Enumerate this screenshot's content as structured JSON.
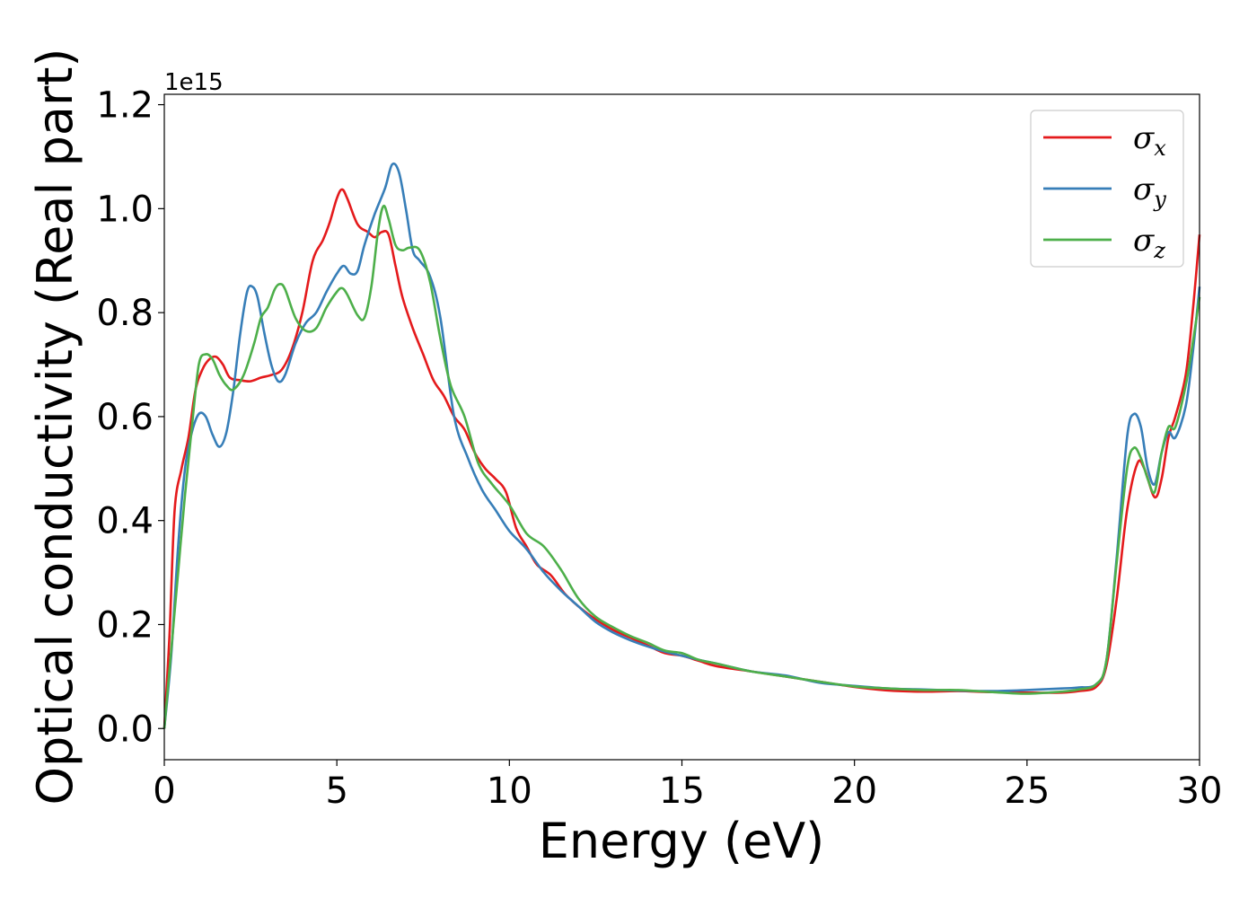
{
  "chart_data": {
    "type": "line",
    "title": "",
    "xlabel": "Energy (eV)",
    "ylabel": "Optical conductivity (Real part)",
    "y_offset_label": "1e15",
    "y_scale": 1000000000000000.0,
    "xlim": [
      0,
      30
    ],
    "ylim": [
      -0.06,
      1.22
    ],
    "x_ticks": [
      0,
      5,
      10,
      15,
      20,
      25,
      30
    ],
    "x_tick_labels": [
      "0",
      "5",
      "10",
      "15",
      "20",
      "25",
      "30"
    ],
    "y_ticks": [
      0.0,
      0.2,
      0.4,
      0.6,
      0.8,
      1.0,
      1.2
    ],
    "y_tick_labels": [
      "0.0",
      "0.2",
      "0.4",
      "0.6",
      "0.8",
      "1.0",
      "1.2"
    ],
    "grid": false,
    "legend_position": "top-right",
    "series": [
      {
        "name": "σx",
        "symbol": "σ",
        "subscript": "x",
        "color": "#e41a1c",
        "points": [
          [
            0,
            0.0
          ],
          [
            0.15,
            0.18
          ],
          [
            0.3,
            0.42
          ],
          [
            0.5,
            0.5
          ],
          [
            0.7,
            0.56
          ],
          [
            0.9,
            0.65
          ],
          [
            1.1,
            0.69
          ],
          [
            1.3,
            0.71
          ],
          [
            1.5,
            0.715
          ],
          [
            1.7,
            0.7
          ],
          [
            1.9,
            0.675
          ],
          [
            2.2,
            0.67
          ],
          [
            2.5,
            0.668
          ],
          [
            2.8,
            0.675
          ],
          [
            3.1,
            0.68
          ],
          [
            3.4,
            0.69
          ],
          [
            3.7,
            0.73
          ],
          [
            4.0,
            0.8
          ],
          [
            4.3,
            0.9
          ],
          [
            4.6,
            0.94
          ],
          [
            4.8,
            0.975
          ],
          [
            5.0,
            1.02
          ],
          [
            5.15,
            1.037
          ],
          [
            5.3,
            1.02
          ],
          [
            5.6,
            0.97
          ],
          [
            5.9,
            0.955
          ],
          [
            6.1,
            0.945
          ],
          [
            6.3,
            0.955
          ],
          [
            6.5,
            0.95
          ],
          [
            6.7,
            0.89
          ],
          [
            6.9,
            0.83
          ],
          [
            7.2,
            0.77
          ],
          [
            7.5,
            0.72
          ],
          [
            7.8,
            0.67
          ],
          [
            8.1,
            0.64
          ],
          [
            8.4,
            0.6
          ],
          [
            8.7,
            0.575
          ],
          [
            9.0,
            0.53
          ],
          [
            9.3,
            0.5
          ],
          [
            9.6,
            0.48
          ],
          [
            9.9,
            0.455
          ],
          [
            10.2,
            0.385
          ],
          [
            10.5,
            0.35
          ],
          [
            10.8,
            0.315
          ],
          [
            11.2,
            0.295
          ],
          [
            11.6,
            0.26
          ],
          [
            12.0,
            0.235
          ],
          [
            12.5,
            0.21
          ],
          [
            13.0,
            0.19
          ],
          [
            13.5,
            0.175
          ],
          [
            14.0,
            0.16
          ],
          [
            14.5,
            0.145
          ],
          [
            15.0,
            0.14
          ],
          [
            15.5,
            0.13
          ],
          [
            16.0,
            0.12
          ],
          [
            17.0,
            0.11
          ],
          [
            18.0,
            0.1
          ],
          [
            19.0,
            0.09
          ],
          [
            20.0,
            0.08
          ],
          [
            21.0,
            0.073
          ],
          [
            22.0,
            0.071
          ],
          [
            23.0,
            0.072
          ],
          [
            24.0,
            0.07
          ],
          [
            25.0,
            0.069
          ],
          [
            26.0,
            0.069
          ],
          [
            26.5,
            0.072
          ],
          [
            27.0,
            0.08
          ],
          [
            27.3,
            0.12
          ],
          [
            27.6,
            0.25
          ],
          [
            27.9,
            0.42
          ],
          [
            28.2,
            0.51
          ],
          [
            28.4,
            0.5
          ],
          [
            28.7,
            0.445
          ],
          [
            28.9,
            0.48
          ],
          [
            29.1,
            0.56
          ],
          [
            29.3,
            0.6
          ],
          [
            29.6,
            0.68
          ],
          [
            29.8,
            0.8
          ],
          [
            30.0,
            0.95
          ]
        ]
      },
      {
        "name": "σy",
        "symbol": "σ",
        "subscript": "y",
        "color": "#377eb8",
        "points": [
          [
            0,
            0.0
          ],
          [
            0.2,
            0.14
          ],
          [
            0.4,
            0.35
          ],
          [
            0.6,
            0.5
          ],
          [
            0.8,
            0.57
          ],
          [
            1.0,
            0.605
          ],
          [
            1.2,
            0.6
          ],
          [
            1.4,
            0.565
          ],
          [
            1.6,
            0.542
          ],
          [
            1.8,
            0.57
          ],
          [
            2.0,
            0.65
          ],
          [
            2.2,
            0.76
          ],
          [
            2.4,
            0.84
          ],
          [
            2.55,
            0.85
          ],
          [
            2.7,
            0.83
          ],
          [
            2.9,
            0.76
          ],
          [
            3.1,
            0.7
          ],
          [
            3.3,
            0.668
          ],
          [
            3.5,
            0.68
          ],
          [
            3.8,
            0.74
          ],
          [
            4.1,
            0.78
          ],
          [
            4.4,
            0.8
          ],
          [
            4.7,
            0.84
          ],
          [
            5.0,
            0.875
          ],
          [
            5.2,
            0.89
          ],
          [
            5.4,
            0.875
          ],
          [
            5.6,
            0.88
          ],
          [
            5.8,
            0.93
          ],
          [
            6.1,
            0.99
          ],
          [
            6.4,
            1.04
          ],
          [
            6.6,
            1.085
          ],
          [
            6.8,
            1.07
          ],
          [
            7.0,
            1.0
          ],
          [
            7.2,
            0.92
          ],
          [
            7.4,
            0.9
          ],
          [
            7.7,
            0.87
          ],
          [
            8.0,
            0.79
          ],
          [
            8.4,
            0.6
          ],
          [
            8.8,
            0.52
          ],
          [
            9.2,
            0.46
          ],
          [
            9.6,
            0.42
          ],
          [
            10.0,
            0.38
          ],
          [
            10.5,
            0.345
          ],
          [
            11.0,
            0.3
          ],
          [
            11.5,
            0.265
          ],
          [
            12.0,
            0.235
          ],
          [
            12.5,
            0.205
          ],
          [
            13.0,
            0.185
          ],
          [
            13.5,
            0.17
          ],
          [
            14.0,
            0.158
          ],
          [
            14.5,
            0.148
          ],
          [
            15.0,
            0.14
          ],
          [
            15.5,
            0.132
          ],
          [
            16.0,
            0.125
          ],
          [
            17.0,
            0.11
          ],
          [
            18.0,
            0.102
          ],
          [
            19.0,
            0.088
          ],
          [
            20.0,
            0.082
          ],
          [
            21.0,
            0.077
          ],
          [
            22.0,
            0.075
          ],
          [
            23.0,
            0.073
          ],
          [
            24.0,
            0.072
          ],
          [
            25.0,
            0.074
          ],
          [
            26.0,
            0.077
          ],
          [
            26.5,
            0.079
          ],
          [
            27.0,
            0.085
          ],
          [
            27.3,
            0.13
          ],
          [
            27.6,
            0.33
          ],
          [
            27.9,
            0.56
          ],
          [
            28.1,
            0.605
          ],
          [
            28.3,
            0.58
          ],
          [
            28.5,
            0.5
          ],
          [
            28.7,
            0.47
          ],
          [
            28.9,
            0.53
          ],
          [
            29.1,
            0.57
          ],
          [
            29.3,
            0.56
          ],
          [
            29.6,
            0.62
          ],
          [
            29.8,
            0.72
          ],
          [
            30.0,
            0.85
          ]
        ]
      },
      {
        "name": "σz",
        "symbol": "σ",
        "subscript": "z",
        "color": "#4daf4a",
        "points": [
          [
            0,
            0.0
          ],
          [
            0.2,
            0.15
          ],
          [
            0.4,
            0.3
          ],
          [
            0.6,
            0.45
          ],
          [
            0.8,
            0.58
          ],
          [
            1.0,
            0.7
          ],
          [
            1.2,
            0.72
          ],
          [
            1.4,
            0.71
          ],
          [
            1.6,
            0.68
          ],
          [
            1.8,
            0.66
          ],
          [
            2.0,
            0.652
          ],
          [
            2.3,
            0.68
          ],
          [
            2.6,
            0.74
          ],
          [
            2.8,
            0.79
          ],
          [
            3.0,
            0.81
          ],
          [
            3.2,
            0.845
          ],
          [
            3.35,
            0.855
          ],
          [
            3.5,
            0.845
          ],
          [
            3.8,
            0.79
          ],
          [
            4.1,
            0.765
          ],
          [
            4.4,
            0.77
          ],
          [
            4.7,
            0.81
          ],
          [
            5.0,
            0.84
          ],
          [
            5.15,
            0.847
          ],
          [
            5.3,
            0.835
          ],
          [
            5.6,
            0.795
          ],
          [
            5.8,
            0.79
          ],
          [
            6.0,
            0.85
          ],
          [
            6.2,
            0.96
          ],
          [
            6.35,
            1.005
          ],
          [
            6.5,
            0.98
          ],
          [
            6.7,
            0.93
          ],
          [
            6.9,
            0.92
          ],
          [
            7.1,
            0.925
          ],
          [
            7.4,
            0.92
          ],
          [
            7.7,
            0.86
          ],
          [
            8.0,
            0.75
          ],
          [
            8.3,
            0.66
          ],
          [
            8.7,
            0.6
          ],
          [
            9.1,
            0.51
          ],
          [
            9.5,
            0.47
          ],
          [
            10.0,
            0.43
          ],
          [
            10.5,
            0.375
          ],
          [
            11.0,
            0.35
          ],
          [
            11.5,
            0.305
          ],
          [
            12.0,
            0.25
          ],
          [
            12.5,
            0.215
          ],
          [
            13.0,
            0.195
          ],
          [
            13.5,
            0.178
          ],
          [
            14.0,
            0.165
          ],
          [
            14.5,
            0.15
          ],
          [
            15.0,
            0.145
          ],
          [
            15.5,
            0.132
          ],
          [
            16.0,
            0.125
          ],
          [
            17.0,
            0.11
          ],
          [
            18.0,
            0.1
          ],
          [
            19.0,
            0.09
          ],
          [
            20.0,
            0.081
          ],
          [
            21.0,
            0.077
          ],
          [
            22.0,
            0.074
          ],
          [
            23.0,
            0.074
          ],
          [
            24.0,
            0.07
          ],
          [
            25.0,
            0.067
          ],
          [
            26.0,
            0.071
          ],
          [
            26.5,
            0.075
          ],
          [
            27.0,
            0.085
          ],
          [
            27.3,
            0.13
          ],
          [
            27.6,
            0.32
          ],
          [
            27.9,
            0.5
          ],
          [
            28.1,
            0.54
          ],
          [
            28.3,
            0.52
          ],
          [
            28.5,
            0.48
          ],
          [
            28.7,
            0.455
          ],
          [
            28.9,
            0.53
          ],
          [
            29.1,
            0.58
          ],
          [
            29.3,
            0.58
          ],
          [
            29.6,
            0.66
          ],
          [
            29.8,
            0.74
          ],
          [
            30.0,
            0.83
          ]
        ]
      }
    ]
  }
}
